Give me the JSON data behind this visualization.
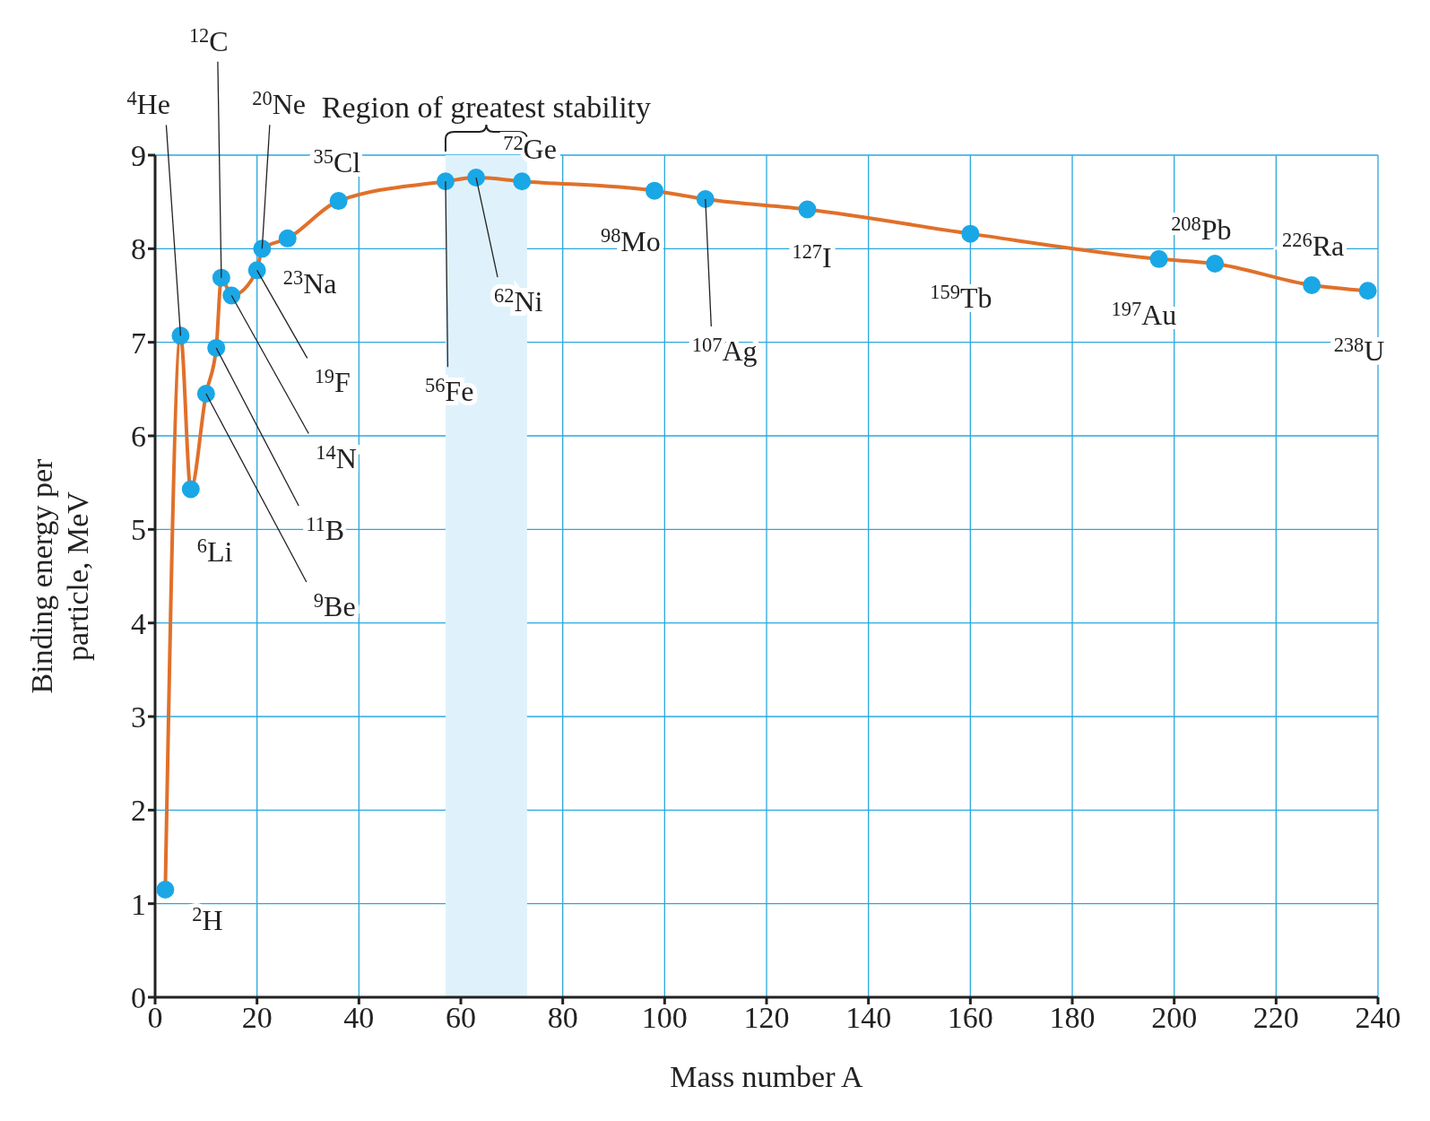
{
  "chart_data": {
    "type": "line",
    "xlabel": "Mass number A",
    "ylabel": "Binding energy per particle, MeV",
    "x": [
      2,
      5,
      7,
      10,
      12,
      13,
      15,
      20,
      21,
      26,
      36,
      57,
      63,
      72,
      98,
      108,
      128,
      160,
      197,
      208,
      227,
      238
    ],
    "series": [
      {
        "color": "#e0702a",
        "values": [
          1.15,
          7.07,
          5.43,
          6.45,
          6.94,
          7.69,
          7.5,
          7.77,
          8.0,
          8.11,
          8.51,
          8.72,
          8.76,
          8.72,
          8.62,
          8.53,
          8.42,
          8.16,
          7.89,
          7.84,
          7.61,
          7.55
        ]
      }
    ],
    "xlim": [
      0,
      240
    ],
    "xticks": [
      0,
      20,
      40,
      60,
      80,
      100,
      120,
      140,
      160,
      180,
      200,
      220,
      240
    ],
    "ylim": [
      0,
      9
    ],
    "yticks": [
      0,
      1,
      2,
      3,
      4,
      5,
      6,
      7,
      8,
      9
    ],
    "grid": true,
    "legend": false,
    "marker": "circle",
    "line_style": "solid",
    "bands": [
      {
        "axis": "x",
        "from": 57,
        "to": 73,
        "label": "Region of greatest stability",
        "color": "#dff2fc"
      }
    ],
    "annotations": [
      {
        "text": "$^{2}$H",
        "x": 2,
        "y": 1.15
      },
      {
        "text": "$^{4}$He",
        "x": 5,
        "y": 7.07
      },
      {
        "text": "$^{6}$Li",
        "x": 7,
        "y": 5.43
      },
      {
        "text": "$^{9}$Be",
        "x": 10,
        "y": 6.45
      },
      {
        "text": "$^{11}$B",
        "x": 12,
        "y": 6.94
      },
      {
        "text": "$^{12}$C",
        "x": 13,
        "y": 7.69
      },
      {
        "text": "$^{14}$N",
        "x": 15,
        "y": 7.5
      },
      {
        "text": "$^{19}$F",
        "x": 20,
        "y": 7.77
      },
      {
        "text": "$^{20}$Ne",
        "x": 21,
        "y": 8.0
      },
      {
        "text": "$^{23}$Na",
        "x": 26,
        "y": 8.11
      },
      {
        "text": "$^{35}$Cl",
        "x": 36,
        "y": 8.51
      },
      {
        "text": "$^{56}$Fe",
        "x": 57,
        "y": 8.72
      },
      {
        "text": "$^{62}$Ni",
        "x": 63,
        "y": 8.76
      },
      {
        "text": "$^{72}$Ge",
        "x": 72,
        "y": 8.72
      },
      {
        "text": "$^{98}$Mo",
        "x": 98,
        "y": 8.62
      },
      {
        "text": "$^{107}$Ag",
        "x": 108,
        "y": 8.53
      },
      {
        "text": "$^{127}$I",
        "x": 128,
        "y": 8.42
      },
      {
        "text": "$^{159}$Tb",
        "x": 160,
        "y": 8.16
      },
      {
        "text": "$^{197}$Au",
        "x": 197,
        "y": 7.89
      },
      {
        "text": "$^{208}$Pb",
        "x": 208,
        "y": 7.84
      },
      {
        "text": "$^{226}$Ra",
        "x": 227,
        "y": 7.61
      },
      {
        "text": "$^{238}$U",
        "x": 238,
        "y": 7.55
      }
    ]
  }
}
